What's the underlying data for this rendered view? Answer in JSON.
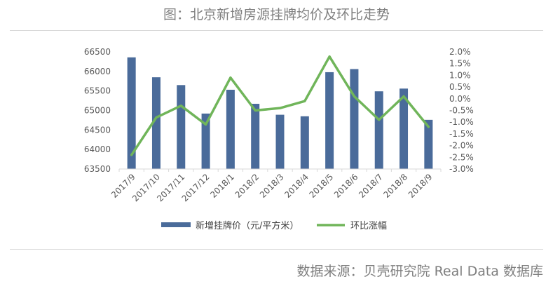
{
  "header": {
    "title": "图：北京新增房源挂牌均价及环比走势"
  },
  "footer": {
    "source": "数据来源：贝壳研究院 Real Data 数据库"
  },
  "chart_data": {
    "type": "bar+line",
    "categories": [
      "2017/9",
      "2017/10",
      "2017/11",
      "2017/12",
      "2018/1",
      "2018/2",
      "2018/3",
      "2018/4",
      "2018/5",
      "2018/6",
      "2018/7",
      "2018/8",
      "2018/9"
    ],
    "series": [
      {
        "name": "新增挂牌价（元/平方米）",
        "type": "bar",
        "axis": "left",
        "color": "#4a6b9a",
        "values": [
          66360,
          65850,
          65650,
          64920,
          65530,
          65170,
          64890,
          64850,
          65980,
          66060,
          65490,
          65560,
          64760
        ]
      },
      {
        "name": "环比涨幅",
        "type": "line",
        "axis": "right",
        "color": "#70b55a",
        "values": [
          -2.4,
          -0.8,
          -0.3,
          -1.1,
          0.9,
          -0.5,
          -0.4,
          -0.1,
          1.8,
          0.1,
          -0.9,
          0.1,
          -1.2
        ]
      }
    ],
    "y_left": {
      "min": 63500,
      "max": 66500,
      "step": 500,
      "ticks": [
        "63500",
        "64000",
        "64500",
        "65000",
        "65500",
        "66000",
        "66500"
      ]
    },
    "y_right": {
      "min": -3.0,
      "max": 2.0,
      "step": 0.5,
      "ticks": [
        "-3.0%",
        "-2.5%",
        "-2.0%",
        "-1.5%",
        "-1.0%",
        "-0.5%",
        "0.0%",
        "0.5%",
        "1.0%",
        "1.5%",
        "2.0%"
      ]
    },
    "grid": false,
    "legend_position": "bottom"
  }
}
